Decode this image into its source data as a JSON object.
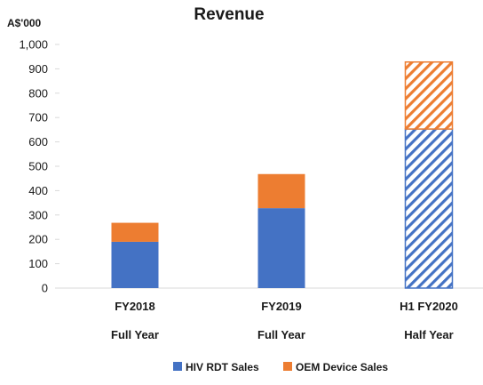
{
  "chart_data": {
    "type": "bar",
    "stacked": true,
    "title": "Revenue",
    "ylabel": "A$'000",
    "ylim": [
      0,
      1000
    ],
    "yticks": [
      "0",
      "100",
      "200",
      "300",
      "400",
      "500",
      "600",
      "700",
      "800",
      "900",
      "1,000"
    ],
    "categories": [
      "FY2018",
      "FY2019",
      "H1 FY2020"
    ],
    "sublabels": [
      "Full Year",
      "Full Year",
      "Half Year"
    ],
    "series": [
      {
        "name": "HIV RDT Sales",
        "values": [
          190,
          328,
          653
        ],
        "color": "#4472c4",
        "pattern": [
          "solid",
          "solid",
          "hatched"
        ]
      },
      {
        "name": "OEM Device Sales",
        "values": [
          78,
          140,
          275
        ],
        "color": "#ed7d31",
        "pattern": [
          "solid",
          "solid",
          "hatched"
        ]
      }
    ],
    "grid": false,
    "legend": "bottom"
  }
}
